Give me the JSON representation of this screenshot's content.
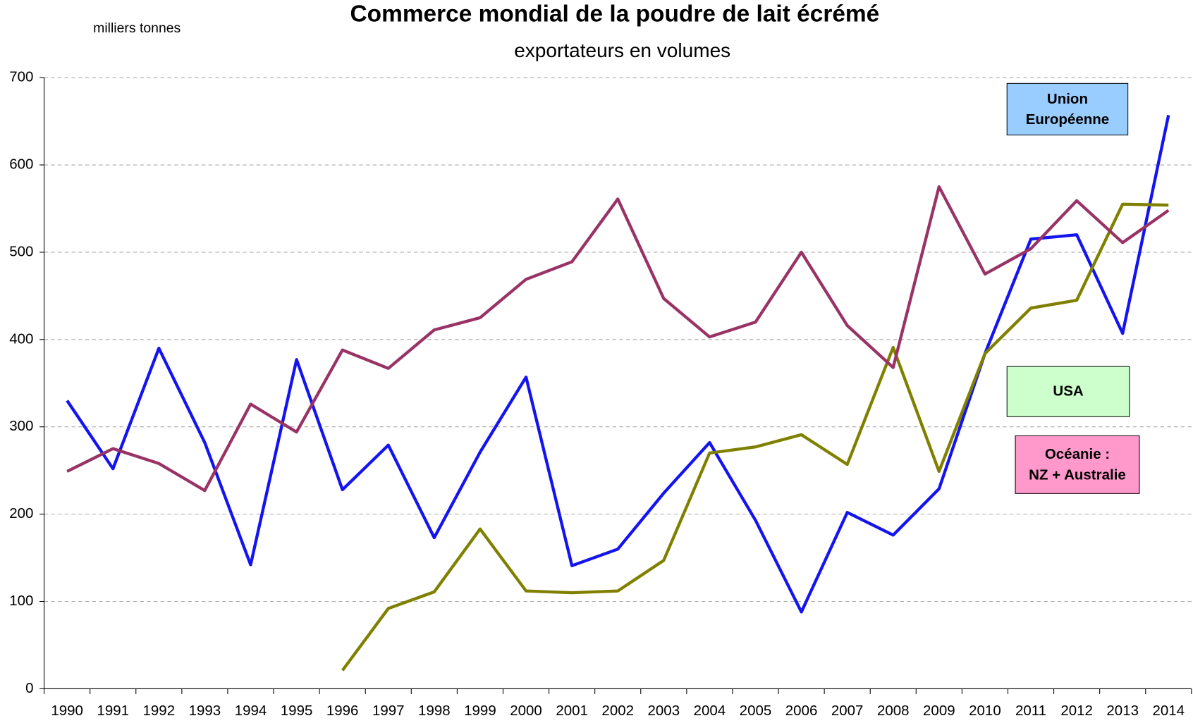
{
  "chart_data": {
    "type": "line",
    "title": "Commerce mondial de la poudre de lait écrémé",
    "subtitle": "exportateurs en volumes",
    "y_label": "milliers tonnes",
    "categories": [
      "1990",
      "1991",
      "1992",
      "1993",
      "1994",
      "1995",
      "1996",
      "1997",
      "1998",
      "1999",
      "2000",
      "2001",
      "2002",
      "2003",
      "2004",
      "2005",
      "2006",
      "2007",
      "2008",
      "2009",
      "2010",
      "2011",
      "2012",
      "2013",
      "2014"
    ],
    "series": [
      {
        "name": "Union\nEuropéenne",
        "color": "#1414f0",
        "box_color": "#99ccff",
        "values": [
          330,
          252,
          390,
          282,
          142,
          377,
          228,
          279,
          173,
          271,
          357,
          141,
          160,
          224,
          282,
          193,
          88,
          202,
          176,
          229,
          384,
          515,
          520,
          407,
          657
        ]
      },
      {
        "name": "USA",
        "color": "#808000",
        "box_color": "#ccffcc",
        "values": [
          null,
          null,
          null,
          null,
          null,
          null,
          21,
          92,
          111,
          183,
          112,
          110,
          112,
          147,
          270,
          277,
          291,
          257,
          391,
          249,
          384,
          436,
          445,
          555,
          554
        ]
      },
      {
        "name": "Océanie :\nNZ + Australie",
        "color": "#993366",
        "box_color": "#ff99cc",
        "values": [
          249,
          275,
          258,
          227,
          326,
          294,
          388,
          367,
          411,
          425,
          469,
          489,
          561,
          447,
          403,
          420,
          500,
          416,
          368,
          575,
          475,
          504,
          559,
          511,
          548
        ]
      }
    ],
    "ylim": [
      0,
      700
    ],
    "yticks": [
      0,
      100,
      200,
      300,
      400,
      500,
      600,
      700
    ],
    "grid": true
  }
}
